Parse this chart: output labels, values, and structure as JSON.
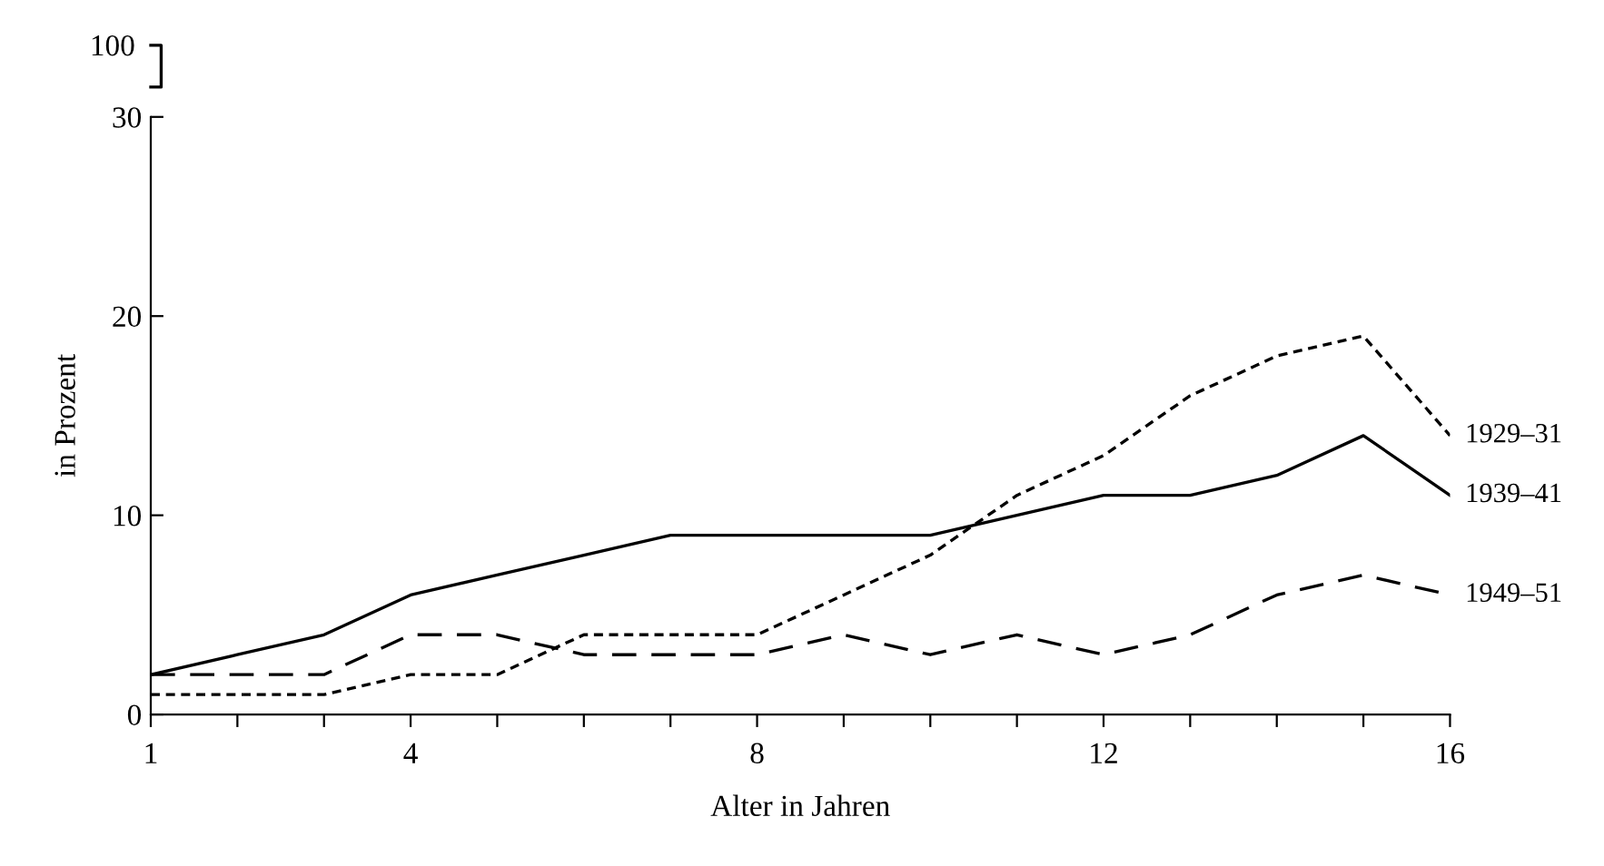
{
  "chart_data": {
    "type": "line",
    "xlabel": "Alter in Jahren",
    "ylabel": "in Prozent",
    "x": [
      1,
      2,
      3,
      4,
      5,
      6,
      7,
      8,
      9,
      10,
      11,
      12,
      13,
      14,
      15,
      16
    ],
    "series": [
      {
        "name": "1929–31",
        "color": "#000000",
        "line_style": "dotted",
        "values": [
          1,
          1,
          1,
          2,
          2,
          4,
          4,
          4,
          6,
          8,
          11,
          13,
          16,
          18,
          19,
          14
        ]
      },
      {
        "name": "1939–41",
        "color": "#000000",
        "line_style": "solid",
        "values": [
          2,
          3,
          4,
          6,
          7,
          8,
          9,
          9,
          9,
          9,
          10,
          11,
          11,
          12,
          14,
          11
        ]
      },
      {
        "name": "1949–51",
        "color": "#000000",
        "line_style": "dashed",
        "values": [
          2,
          2,
          2,
          4,
          4,
          3,
          3,
          3,
          4,
          3,
          4,
          3,
          4,
          6,
          7,
          6
        ]
      }
    ],
    "xlim": [
      1,
      16
    ],
    "xticks": [
      1,
      {
        "value": 2,
        "label": null
      },
      {
        "value": 3,
        "label": null
      },
      4,
      {
        "value": 5,
        "label": null
      },
      {
        "value": 6,
        "label": null
      },
      {
        "value": 7,
        "label": null
      },
      8,
      {
        "value": 9,
        "label": null
      },
      {
        "value": 10,
        "label": null
      },
      {
        "value": 11,
        "label": null
      },
      12,
      {
        "value": 13,
        "label": null
      },
      {
        "value": 14,
        "label": null
      },
      {
        "value": 15,
        "label": null
      },
      16
    ],
    "ylim": [
      0,
      30
    ],
    "yticks": [
      0,
      10,
      20,
      30
    ],
    "annotations": [
      "100"
    ],
    "grid": false,
    "legend": false,
    "marker": "none"
  }
}
